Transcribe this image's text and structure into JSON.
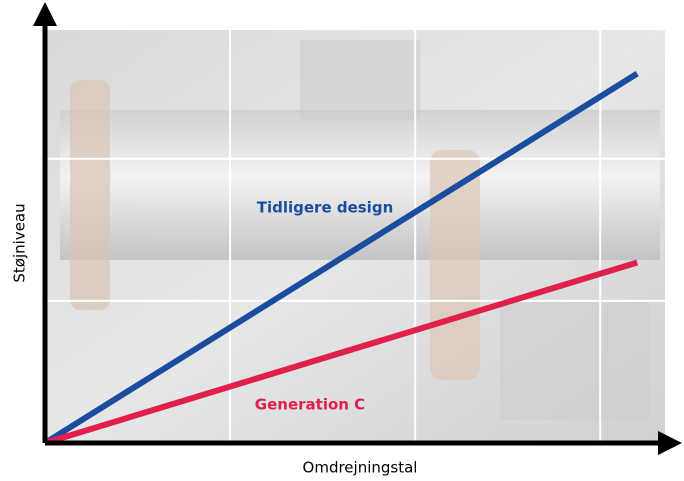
{
  "chart_data": {
    "type": "line",
    "x_label": "Omdrejningstal",
    "y_label": "Støjniveau",
    "x": [
      0,
      3.2
    ],
    "series": [
      {
        "name": "Tidligere design",
        "color": "#1a4d9e",
        "values": [
          0,
          2.6
        ]
      },
      {
        "name": "Generation C",
        "color": "#e0204a",
        "values": [
          0,
          1.27
        ]
      }
    ],
    "xlim": [
      0,
      3.35
    ],
    "ylim": [
      0,
      2.85
    ],
    "xticks": [
      1,
      2,
      3
    ],
    "yticks": [
      1,
      2
    ],
    "grid": true
  }
}
